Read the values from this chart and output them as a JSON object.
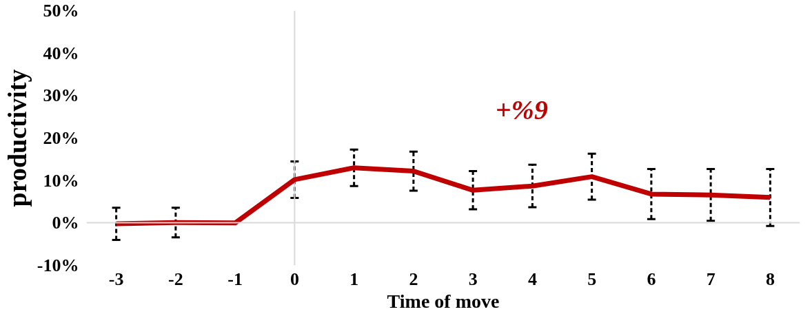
{
  "chart_data": {
    "type": "line",
    "x": [
      -3,
      -2,
      -1,
      0,
      1,
      2,
      3,
      4,
      5,
      6,
      7,
      8
    ],
    "series": [
      {
        "color": "#c00000",
        "values": [
          -0.2,
          0.1,
          0,
          10.2,
          13,
          12.2,
          7.7,
          8.7,
          10.9,
          6.8,
          6.6,
          6.0
        ],
        "errors": [
          3.8,
          3.5,
          null,
          4.3,
          4.3,
          4.6,
          4.5,
          5,
          5.4,
          5.9,
          6.1,
          6.7
        ]
      }
    ],
    "xlabel": "Time of move",
    "ylabel": "productivity",
    "annotations": [
      "+%9"
    ],
    "xlim": [
      -3.5,
      8.5
    ],
    "xticks": [
      -3,
      -2,
      -1,
      0,
      1,
      2,
      3,
      4,
      5,
      6,
      7,
      8
    ],
    "ylim": [
      -10,
      50
    ],
    "yticks": [
      {
        "value": -10,
        "label": "-10%"
      },
      {
        "value": 0,
        "label": "0%"
      },
      {
        "value": 10,
        "label": "10%"
      },
      {
        "value": 20,
        "label": "20%"
      },
      {
        "value": 30,
        "label": "30%"
      },
      {
        "value": 40,
        "label": "40%"
      },
      {
        "value": 50,
        "label": "50%"
      }
    ],
    "ref_lines": [
      {
        "axis": "x",
        "value": 0,
        "color": "#d9d9d9"
      }
    ],
    "grid": false,
    "marker": "none",
    "line_style": "solid"
  }
}
